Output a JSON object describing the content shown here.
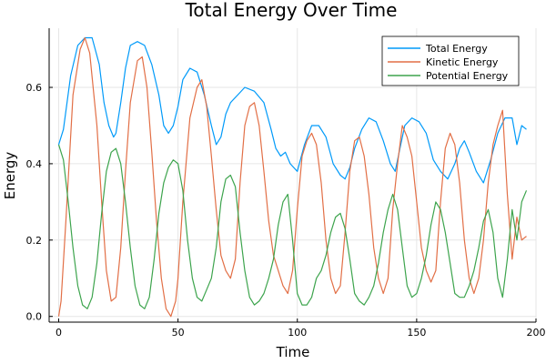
{
  "chart_data": {
    "type": "line",
    "title": "Total Energy Over Time",
    "xlabel": "Time",
    "ylabel": "Energy",
    "xlim": [
      -4,
      200
    ],
    "ylim": [
      -0.015,
      0.755
    ],
    "xticks": [
      0,
      50,
      100,
      150,
      200
    ],
    "xtick_labels": [
      "0",
      "50",
      "100",
      "150",
      "200"
    ],
    "yticks": [
      0.0,
      0.2,
      0.4,
      0.6
    ],
    "ytick_labels": [
      "0.0",
      "0.2",
      "0.4",
      "0.6"
    ],
    "grid": true,
    "legend_position": "top-right",
    "series": [
      {
        "name": "Total Energy",
        "color": "#009af9",
        "x": [
          0,
          2,
          5,
          8,
          11,
          14,
          17,
          19,
          21,
          23,
          24,
          26,
          28,
          30,
          33,
          36,
          39,
          42,
          44,
          46,
          48,
          50,
          52,
          55,
          58,
          61,
          64,
          66,
          68,
          70,
          72,
          75,
          78,
          82,
          86,
          89,
          91,
          93,
          95,
          97,
          100,
          103,
          106,
          109,
          112,
          115,
          118,
          120,
          122,
          124,
          127,
          130,
          133,
          136,
          139,
          141,
          143,
          145,
          148,
          151,
          154,
          157,
          160,
          163,
          166,
          168,
          170,
          172,
          175,
          178,
          181,
          184,
          187,
          190,
          192,
          194,
          196
        ],
        "values": [
          0.45,
          0.49,
          0.63,
          0.71,
          0.73,
          0.73,
          0.66,
          0.56,
          0.5,
          0.47,
          0.48,
          0.56,
          0.65,
          0.71,
          0.72,
          0.71,
          0.66,
          0.58,
          0.5,
          0.48,
          0.5,
          0.55,
          0.62,
          0.65,
          0.64,
          0.58,
          0.5,
          0.45,
          0.47,
          0.53,
          0.56,
          0.58,
          0.6,
          0.59,
          0.56,
          0.49,
          0.44,
          0.42,
          0.43,
          0.4,
          0.38,
          0.45,
          0.5,
          0.5,
          0.47,
          0.4,
          0.37,
          0.36,
          0.39,
          0.44,
          0.49,
          0.52,
          0.51,
          0.46,
          0.4,
          0.38,
          0.44,
          0.5,
          0.52,
          0.51,
          0.48,
          0.41,
          0.38,
          0.36,
          0.4,
          0.44,
          0.46,
          0.43,
          0.38,
          0.35,
          0.41,
          0.48,
          0.52,
          0.52,
          0.45,
          0.5,
          0.49
        ]
      },
      {
        "name": "Kinetic Energy",
        "color": "#e26f46",
        "x": [
          0,
          1,
          3,
          6,
          9,
          11,
          13,
          16,
          18,
          20,
          22,
          24,
          26,
          28,
          30,
          33,
          35,
          37,
          39,
          41,
          43,
          45,
          47,
          49,
          50,
          52,
          55,
          58,
          60,
          62,
          64,
          66,
          68,
          70,
          72,
          74,
          76,
          78,
          80,
          82,
          84,
          86,
          88,
          90,
          92,
          94,
          96,
          98,
          100,
          102,
          104,
          106,
          108,
          110,
          112,
          114,
          116,
          118,
          120,
          122,
          124,
          126,
          128,
          130,
          132,
          134,
          136,
          138,
          140,
          142,
          144,
          146,
          148,
          150,
          152,
          154,
          156,
          158,
          160,
          162,
          164,
          166,
          168,
          170,
          172,
          174,
          176,
          178,
          180,
          182,
          184,
          186,
          188,
          190,
          192,
          194,
          196
        ],
        "values": [
          0.0,
          0.04,
          0.25,
          0.58,
          0.7,
          0.73,
          0.69,
          0.5,
          0.3,
          0.12,
          0.04,
          0.05,
          0.18,
          0.38,
          0.56,
          0.67,
          0.68,
          0.6,
          0.43,
          0.25,
          0.1,
          0.02,
          0.0,
          0.04,
          0.1,
          0.3,
          0.52,
          0.6,
          0.62,
          0.55,
          0.42,
          0.28,
          0.16,
          0.12,
          0.1,
          0.15,
          0.35,
          0.5,
          0.55,
          0.56,
          0.5,
          0.38,
          0.25,
          0.16,
          0.12,
          0.08,
          0.06,
          0.12,
          0.28,
          0.42,
          0.46,
          0.48,
          0.45,
          0.35,
          0.2,
          0.1,
          0.06,
          0.08,
          0.22,
          0.38,
          0.46,
          0.47,
          0.42,
          0.32,
          0.18,
          0.1,
          0.06,
          0.1,
          0.28,
          0.4,
          0.5,
          0.47,
          0.42,
          0.3,
          0.18,
          0.12,
          0.09,
          0.12,
          0.3,
          0.44,
          0.48,
          0.45,
          0.35,
          0.2,
          0.1,
          0.06,
          0.1,
          0.2,
          0.35,
          0.45,
          0.5,
          0.54,
          0.32,
          0.15,
          0.26,
          0.2,
          0.21
        ]
      },
      {
        "name": "Potential Energy",
        "color": "#3da44d",
        "x": [
          0,
          2,
          4,
          6,
          8,
          10,
          12,
          14,
          16,
          18,
          20,
          22,
          24,
          26,
          28,
          30,
          32,
          34,
          36,
          38,
          40,
          42,
          44,
          46,
          48,
          50,
          52,
          54,
          56,
          58,
          60,
          62,
          64,
          66,
          68,
          70,
          72,
          74,
          76,
          78,
          80,
          82,
          84,
          86,
          88,
          90,
          92,
          94,
          96,
          98,
          100,
          102,
          104,
          106,
          108,
          110,
          112,
          114,
          116,
          118,
          120,
          122,
          124,
          126,
          128,
          130,
          132,
          134,
          136,
          138,
          140,
          142,
          144,
          146,
          148,
          150,
          152,
          154,
          156,
          158,
          160,
          162,
          164,
          166,
          168,
          170,
          172,
          174,
          176,
          178,
          180,
          182,
          184,
          186,
          188,
          190,
          192,
          194,
          196
        ],
        "values": [
          0.45,
          0.41,
          0.3,
          0.18,
          0.08,
          0.03,
          0.02,
          0.05,
          0.14,
          0.27,
          0.38,
          0.43,
          0.44,
          0.4,
          0.3,
          0.18,
          0.08,
          0.03,
          0.02,
          0.05,
          0.15,
          0.27,
          0.35,
          0.39,
          0.41,
          0.4,
          0.33,
          0.2,
          0.1,
          0.05,
          0.04,
          0.07,
          0.1,
          0.18,
          0.3,
          0.36,
          0.37,
          0.34,
          0.22,
          0.12,
          0.05,
          0.03,
          0.04,
          0.06,
          0.1,
          0.15,
          0.24,
          0.3,
          0.32,
          0.2,
          0.06,
          0.03,
          0.03,
          0.05,
          0.1,
          0.12,
          0.16,
          0.22,
          0.26,
          0.27,
          0.23,
          0.15,
          0.06,
          0.04,
          0.03,
          0.05,
          0.08,
          0.14,
          0.22,
          0.28,
          0.32,
          0.28,
          0.18,
          0.08,
          0.05,
          0.06,
          0.1,
          0.16,
          0.24,
          0.3,
          0.28,
          0.22,
          0.14,
          0.06,
          0.05,
          0.05,
          0.08,
          0.12,
          0.18,
          0.25,
          0.28,
          0.22,
          0.1,
          0.05,
          0.15,
          0.28,
          0.2,
          0.3,
          0.33
        ]
      }
    ]
  }
}
